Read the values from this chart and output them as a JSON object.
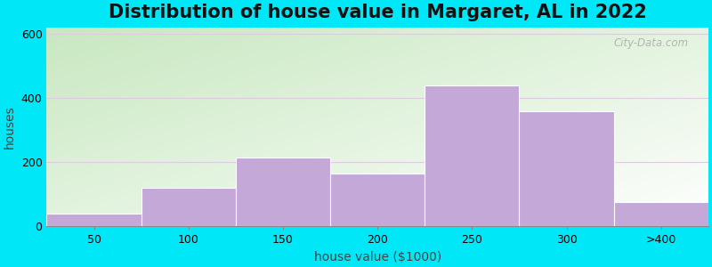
{
  "title": "Distribution of house value in Margaret, AL in 2022",
  "xlabel": "house value ($1000)",
  "ylabel": "houses",
  "categories": [
    "50",
    "100",
    "150",
    "200",
    "250",
    "300",
    ">400"
  ],
  "values": [
    40,
    120,
    215,
    165,
    440,
    360,
    75
  ],
  "bar_color": "#c4a8d8",
  "bar_edgecolor": "#ffffff",
  "ylim": [
    0,
    620
  ],
  "yticks": [
    0,
    200,
    400,
    600
  ],
  "outer_bg": "#00e8f8",
  "title_fontsize": 15,
  "axis_label_fontsize": 10,
  "tick_fontsize": 9,
  "watermark": "City-Data.com",
  "grid_color": "#ddccdd",
  "bg_left_color": "#c8e8c0",
  "bg_right_color": "#f8f8f8",
  "bg_top_color": "#f0f5ee",
  "bg_bottom_color": "#e8f4e0"
}
